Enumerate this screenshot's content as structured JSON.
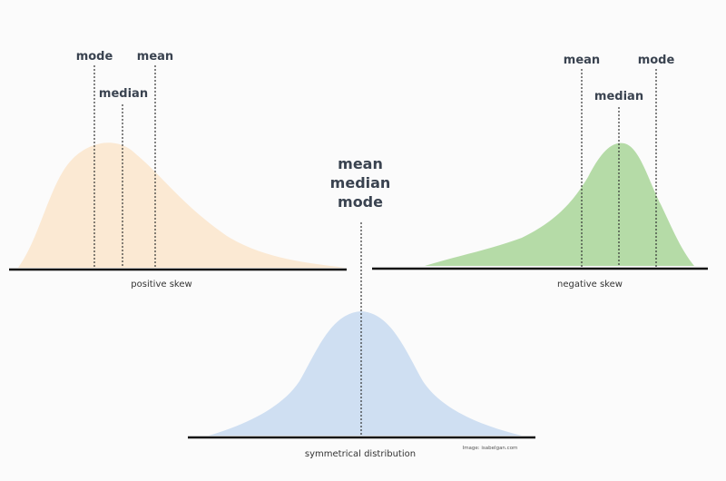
{
  "panels": [
    {
      "caption": "positive skew",
      "markers": [
        "mode",
        "median",
        "mean"
      ]
    },
    {
      "caption": "negative skew",
      "markers": [
        "mean",
        "median",
        "mode"
      ]
    },
    {
      "caption": "symmetrical distribution",
      "markers": [
        "mean",
        "median",
        "mode"
      ]
    }
  ],
  "credit": "Image: isabelgan.com"
}
